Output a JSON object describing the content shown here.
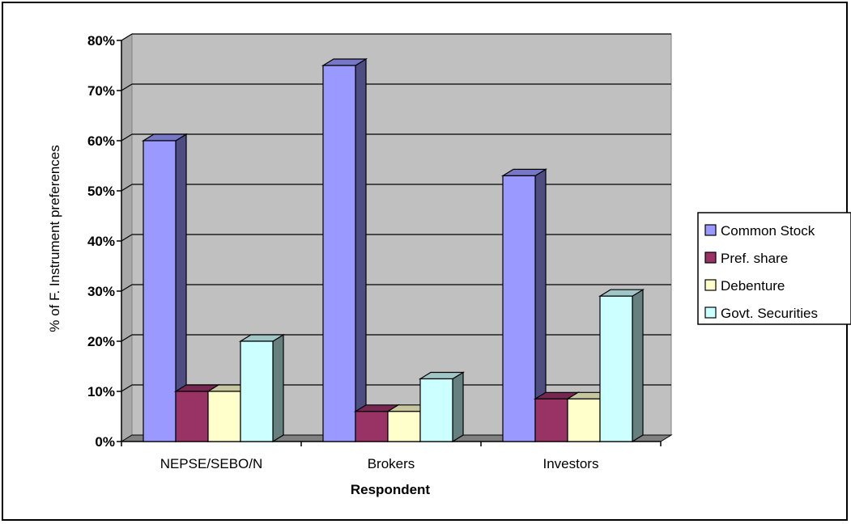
{
  "chart_data": {
    "type": "bar",
    "title": "",
    "xlabel": "Respondent",
    "ylabel": "% of F.  Instrument preferences",
    "categories": [
      "NEPSE/SEBO/N",
      "Brokers",
      "Investors"
    ],
    "series": [
      {
        "name": "Common Stock",
        "values": [
          60,
          75,
          53
        ],
        "color": "#9999FF"
      },
      {
        "name": "Pref. share",
        "values": [
          10,
          6,
          8.5
        ],
        "color": "#993366"
      },
      {
        "name": "Debenture",
        "values": [
          10,
          6,
          8.5
        ],
        "color": "#FFFFCC"
      },
      {
        "name": "Govt. Securities",
        "values": [
          20,
          12.5,
          29
        ],
        "color": "#CCFFFF"
      }
    ],
    "ylim": [
      0,
      80
    ],
    "yticks": [
      "0%",
      "10%",
      "20%",
      "30%",
      "40%",
      "50%",
      "60%",
      "70%",
      "80%"
    ],
    "grid": true,
    "legend_position": "right",
    "plot_background": "#C0C0C0"
  }
}
